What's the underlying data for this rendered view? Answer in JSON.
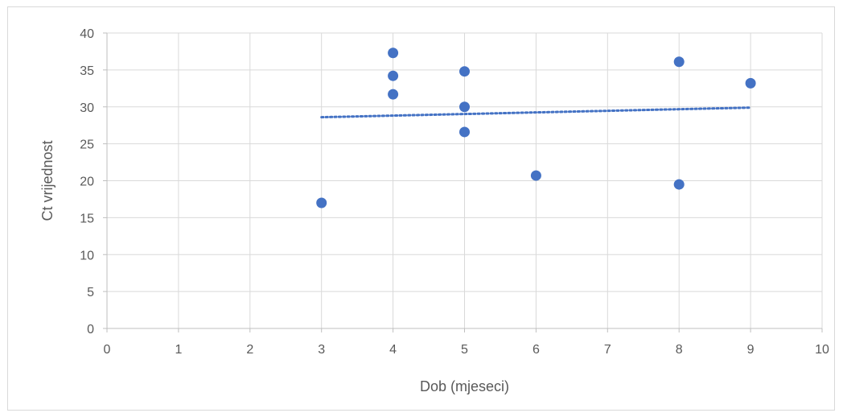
{
  "chart_data": {
    "type": "scatter",
    "title": "",
    "xlabel": "Dob (mjeseci)",
    "ylabel": "Ct vrijednost",
    "xlim": [
      0,
      10
    ],
    "ylim": [
      0,
      40
    ],
    "x_ticks": [
      0,
      1,
      2,
      3,
      4,
      5,
      6,
      7,
      8,
      9,
      10
    ],
    "y_ticks": [
      0,
      5,
      10,
      15,
      20,
      25,
      30,
      35,
      40
    ],
    "grid": true,
    "legend": "none",
    "series": [
      {
        "marker_color": "#4472C4",
        "points": [
          {
            "x": 3,
            "y": 17.0
          },
          {
            "x": 4,
            "y": 37.3
          },
          {
            "x": 4,
            "y": 34.2
          },
          {
            "x": 4,
            "y": 31.7
          },
          {
            "x": 5,
            "y": 34.8
          },
          {
            "x": 5,
            "y": 30.0
          },
          {
            "x": 5,
            "y": 26.6
          },
          {
            "x": 6,
            "y": 20.7
          },
          {
            "x": 8,
            "y": 36.1
          },
          {
            "x": 8,
            "y": 19.5
          },
          {
            "x": 9,
            "y": 33.2
          }
        ]
      }
    ],
    "trendline": {
      "type": "linear",
      "style": "dotted",
      "color": "#4472C4",
      "x_range": [
        3,
        9
      ],
      "y_at_start": 28.6,
      "y_at_end": 29.9
    }
  }
}
